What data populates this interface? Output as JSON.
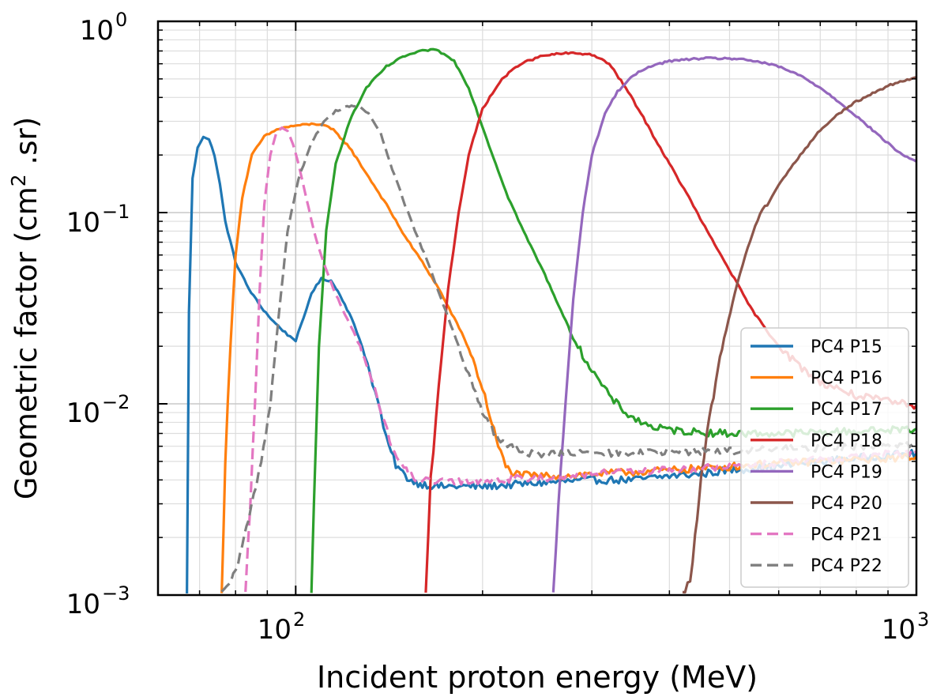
{
  "chart_data": {
    "type": "line",
    "xscale": "log",
    "yscale": "log",
    "xlim": [
      60,
      1000
    ],
    "ylim": [
      0.001,
      1
    ],
    "xlabel": "Incident proton energy (MeV)",
    "ylabel_main": "Geometric factor (cm",
    "ylabel_sup": "2",
    "ylabel_tail": " .sr)",
    "x_ticks": [
      {
        "value": 100,
        "base": "10",
        "exp": "2"
      },
      {
        "value": 1000,
        "base": "10",
        "exp": "3"
      }
    ],
    "y_ticks": [
      {
        "value": 1,
        "base": "10",
        "exp": "0"
      },
      {
        "value": 0.1,
        "base": "10",
        "exp": "−1"
      },
      {
        "value": 0.01,
        "base": "10",
        "exp": "−2"
      },
      {
        "value": 0.001,
        "base": "10",
        "exp": "−3"
      }
    ],
    "grid": true,
    "legend_position": "lower-right",
    "series": [
      {
        "name": "PC4 P15",
        "color": "#1f77b4",
        "dash": "solid",
        "points": [
          [
            66.8,
            0.001
          ],
          [
            67.3,
            0.03
          ],
          [
            68.2,
            0.15
          ],
          [
            69.5,
            0.22
          ],
          [
            71,
            0.25
          ],
          [
            72.5,
            0.24
          ],
          [
            74,
            0.2
          ],
          [
            75.5,
            0.14
          ],
          [
            77,
            0.09
          ],
          [
            80,
            0.055
          ],
          [
            84,
            0.04
          ],
          [
            88,
            0.032
          ],
          [
            92,
            0.027
          ],
          [
            97,
            0.023
          ],
          [
            100,
            0.0215
          ],
          [
            103,
            0.028
          ],
          [
            106,
            0.038
          ],
          [
            110,
            0.045
          ],
          [
            114,
            0.044
          ],
          [
            118,
            0.037
          ],
          [
            123,
            0.028
          ],
          [
            128,
            0.02
          ],
          [
            133,
            0.013
          ],
          [
            137,
            0.009
          ],
          [
            140,
            0.0065
          ],
          [
            145,
            0.0048
          ],
          [
            150,
            0.0042
          ],
          [
            155,
            0.0039
          ],
          [
            160,
            0.0038
          ],
          [
            170,
            0.0037
          ],
          [
            180,
            0.0037
          ],
          [
            200,
            0.0037
          ],
          [
            230,
            0.0038
          ],
          [
            260,
            0.0039
          ],
          [
            300,
            0.004
          ],
          [
            350,
            0.004
          ],
          [
            400,
            0.0042
          ],
          [
            450,
            0.0043
          ],
          [
            500,
            0.0045
          ],
          [
            550,
            0.0046
          ],
          [
            600,
            0.0047
          ],
          [
            650,
            0.0049
          ],
          [
            700,
            0.005
          ],
          [
            800,
            0.0052
          ],
          [
            900,
            0.0054
          ],
          [
            1000,
            0.0055
          ]
        ]
      },
      {
        "name": "PC4 P16",
        "color": "#ff7f0e",
        "dash": "solid",
        "points": [
          [
            76,
            0.001
          ],
          [
            77,
            0.005
          ],
          [
            78.5,
            0.02
          ],
          [
            80,
            0.06
          ],
          [
            82,
            0.12
          ],
          [
            85,
            0.2
          ],
          [
            89,
            0.25
          ],
          [
            94,
            0.275
          ],
          [
            100,
            0.285
          ],
          [
            106,
            0.29
          ],
          [
            110,
            0.29
          ],
          [
            115,
            0.27
          ],
          [
            122,
            0.22
          ],
          [
            130,
            0.16
          ],
          [
            140,
            0.11
          ],
          [
            150,
            0.075
          ],
          [
            160,
            0.055
          ],
          [
            170,
            0.04
          ],
          [
            180,
            0.028
          ],
          [
            187,
            0.022
          ],
          [
            193,
            0.017
          ],
          [
            200,
            0.012
          ],
          [
            207,
            0.008
          ],
          [
            212,
            0.006
          ],
          [
            218,
            0.0047
          ],
          [
            225,
            0.0043
          ],
          [
            240,
            0.0042
          ],
          [
            270,
            0.0042
          ],
          [
            300,
            0.0043
          ],
          [
            350,
            0.0044
          ],
          [
            400,
            0.0045
          ],
          [
            500,
            0.0047
          ],
          [
            600,
            0.0049
          ],
          [
            700,
            0.005
          ],
          [
            800,
            0.0051
          ],
          [
            900,
            0.0052
          ],
          [
            1000,
            0.0053
          ]
        ]
      },
      {
        "name": "PC4 P17",
        "color": "#2ca02c",
        "dash": "solid",
        "points": [
          [
            106,
            0.001
          ],
          [
            107,
            0.003
          ],
          [
            109,
            0.02
          ],
          [
            112,
            0.08
          ],
          [
            116,
            0.18
          ],
          [
            122,
            0.3
          ],
          [
            130,
            0.45
          ],
          [
            140,
            0.58
          ],
          [
            150,
            0.66
          ],
          [
            160,
            0.7
          ],
          [
            165,
            0.71
          ],
          [
            170,
            0.7
          ],
          [
            180,
            0.62
          ],
          [
            190,
            0.45
          ],
          [
            200,
            0.28
          ],
          [
            210,
            0.18
          ],
          [
            220,
            0.12
          ],
          [
            235,
            0.075
          ],
          [
            250,
            0.05
          ],
          [
            265,
            0.033
          ],
          [
            280,
            0.022
          ],
          [
            300,
            0.015
          ],
          [
            320,
            0.011
          ],
          [
            340,
            0.009
          ],
          [
            360,
            0.008
          ],
          [
            380,
            0.0075
          ],
          [
            400,
            0.0073
          ],
          [
            450,
            0.0071
          ],
          [
            500,
            0.007
          ],
          [
            600,
            0.007
          ],
          [
            700,
            0.0071
          ],
          [
            800,
            0.0072
          ],
          [
            900,
            0.0073
          ],
          [
            1000,
            0.0074
          ]
        ]
      },
      {
        "name": "PC4 P18",
        "color": "#d62728",
        "dash": "solid",
        "points": [
          [
            162,
            0.001
          ],
          [
            165,
            0.004
          ],
          [
            170,
            0.012
          ],
          [
            176,
            0.04
          ],
          [
            183,
            0.1
          ],
          [
            190,
            0.2
          ],
          [
            200,
            0.35
          ],
          [
            215,
            0.5
          ],
          [
            230,
            0.6
          ],
          [
            250,
            0.66
          ],
          [
            270,
            0.68
          ],
          [
            285,
            0.68
          ],
          [
            300,
            0.67
          ],
          [
            320,
            0.6
          ],
          [
            340,
            0.45
          ],
          [
            360,
            0.33
          ],
          [
            380,
            0.24
          ],
          [
            400,
            0.18
          ],
          [
            430,
            0.12
          ],
          [
            460,
            0.08
          ],
          [
            500,
            0.05
          ],
          [
            540,
            0.032
          ],
          [
            580,
            0.023
          ],
          [
            620,
            0.018
          ],
          [
            660,
            0.015
          ],
          [
            700,
            0.013
          ],
          [
            750,
            0.012
          ],
          [
            800,
            0.011
          ],
          [
            900,
            0.0103
          ],
          [
            1000,
            0.0098
          ]
        ]
      },
      {
        "name": "PC4 P19",
        "color": "#9467bd",
        "dash": "solid",
        "points": [
          [
            260,
            0.001
          ],
          [
            265,
            0.003
          ],
          [
            272,
            0.01
          ],
          [
            280,
            0.035
          ],
          [
            290,
            0.1
          ],
          [
            300,
            0.2
          ],
          [
            315,
            0.33
          ],
          [
            330,
            0.43
          ],
          [
            350,
            0.52
          ],
          [
            370,
            0.58
          ],
          [
            400,
            0.62
          ],
          [
            450,
            0.64
          ],
          [
            500,
            0.64
          ],
          [
            550,
            0.62
          ],
          [
            600,
            0.58
          ],
          [
            650,
            0.52
          ],
          [
            700,
            0.45
          ],
          [
            750,
            0.38
          ],
          [
            800,
            0.32
          ],
          [
            850,
            0.27
          ],
          [
            900,
            0.23
          ],
          [
            950,
            0.2
          ],
          [
            1000,
            0.185
          ]
        ]
      },
      {
        "name": "PC4 P20",
        "color": "#8c564b",
        "dash": "solid",
        "points": [
          [
            420,
            0.001
          ],
          [
            432,
            0.0012
          ],
          [
            440,
            0.002
          ],
          [
            450,
            0.004
          ],
          [
            460,
            0.007
          ],
          [
            475,
            0.013
          ],
          [
            490,
            0.022
          ],
          [
            510,
            0.038
          ],
          [
            530,
            0.06
          ],
          [
            550,
            0.085
          ],
          [
            565,
            0.105
          ],
          [
            575,
            0.11
          ],
          [
            600,
            0.14
          ],
          [
            650,
            0.2
          ],
          [
            700,
            0.27
          ],
          [
            750,
            0.33
          ],
          [
            800,
            0.38
          ],
          [
            850,
            0.42
          ],
          [
            900,
            0.46
          ],
          [
            950,
            0.49
          ],
          [
            1000,
            0.51
          ]
        ]
      },
      {
        "name": "PC4 P21",
        "color": "#e377c2",
        "dash": "dashed",
        "points": [
          [
            83,
            0.001
          ],
          [
            84.5,
            0.003
          ],
          [
            86,
            0.01
          ],
          [
            87.5,
            0.04
          ],
          [
            89,
            0.11
          ],
          [
            91,
            0.2
          ],
          [
            93,
            0.26
          ],
          [
            95,
            0.275
          ],
          [
            97,
            0.265
          ],
          [
            99,
            0.23
          ],
          [
            101,
            0.18
          ],
          [
            104,
            0.12
          ],
          [
            107,
            0.08
          ],
          [
            111,
            0.054
          ],
          [
            115,
            0.04
          ],
          [
            119,
            0.031
          ],
          [
            123,
            0.025
          ],
          [
            127,
            0.02
          ],
          [
            131,
            0.015
          ],
          [
            135,
            0.011
          ],
          [
            139,
            0.008
          ],
          [
            143,
            0.006
          ],
          [
            148,
            0.0047
          ],
          [
            155,
            0.0041
          ],
          [
            165,
            0.0039
          ],
          [
            180,
            0.0039
          ],
          [
            200,
            0.004
          ],
          [
            250,
            0.0041
          ],
          [
            300,
            0.0043
          ],
          [
            400,
            0.0045
          ],
          [
            500,
            0.0047
          ],
          [
            600,
            0.0049
          ],
          [
            700,
            0.0051
          ],
          [
            800,
            0.0053
          ],
          [
            900,
            0.0055
          ],
          [
            1000,
            0.0056
          ]
        ]
      },
      {
        "name": "PC4 P22",
        "color": "#7f7f7f",
        "dash": "dashed",
        "points": [
          [
            76,
            0.001
          ],
          [
            80,
            0.0013
          ],
          [
            84,
            0.0025
          ],
          [
            88,
            0.005
          ],
          [
            91,
            0.01
          ],
          [
            94,
            0.03
          ],
          [
            97,
            0.08
          ],
          [
            101,
            0.15
          ],
          [
            106,
            0.23
          ],
          [
            111,
            0.3
          ],
          [
            116,
            0.34
          ],
          [
            121,
            0.36
          ],
          [
            126,
            0.36
          ],
          [
            131,
            0.33
          ],
          [
            137,
            0.26
          ],
          [
            143,
            0.17
          ],
          [
            150,
            0.11
          ],
          [
            157,
            0.075
          ],
          [
            165,
            0.05
          ],
          [
            173,
            0.033
          ],
          [
            181,
            0.022
          ],
          [
            190,
            0.014
          ],
          [
            200,
            0.009
          ],
          [
            212,
            0.0065
          ],
          [
            225,
            0.0058
          ],
          [
            240,
            0.0055
          ],
          [
            270,
            0.0055
          ],
          [
            300,
            0.0055
          ],
          [
            400,
            0.0056
          ],
          [
            500,
            0.0057
          ],
          [
            600,
            0.0058
          ],
          [
            700,
            0.0059
          ],
          [
            800,
            0.006
          ],
          [
            900,
            0.0061
          ],
          [
            1000,
            0.0062
          ]
        ]
      }
    ]
  }
}
